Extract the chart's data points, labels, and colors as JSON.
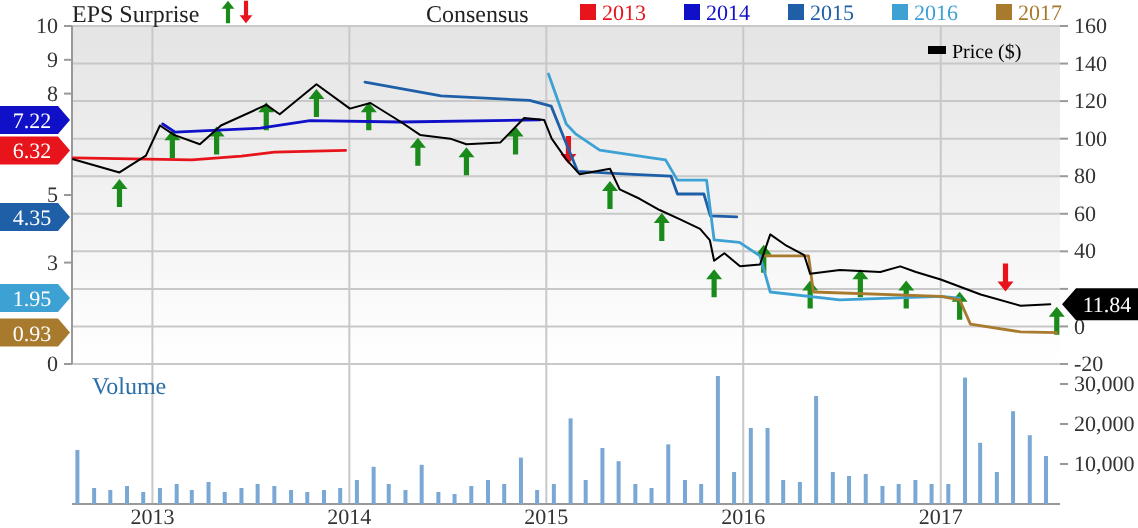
{
  "chart_data": {
    "type": "line",
    "annotations": [
      "EPS Surprise",
      "Consensus",
      "6.32",
      "7.22",
      "4.35",
      "1.95",
      "0.93",
      "11.84"
    ],
    "xlim": [
      "2012-08-05",
      "2017-08-10"
    ],
    "xticks": [
      {
        "value": "2013",
        "label": "2013"
      },
      {
        "value": "2014",
        "label": "2014"
      },
      {
        "value": "2015",
        "label": "2015"
      },
      {
        "value": "2016",
        "label": "2016"
      },
      {
        "value": "2017",
        "label": "2017"
      }
    ],
    "ylim": [
      0,
      10
    ],
    "yticks": [
      {
        "value": 10,
        "label": "10"
      },
      {
        "value": 9,
        "label": "9"
      },
      {
        "value": 8,
        "label": "8"
      },
      {
        "value": 5,
        "label": "5"
      },
      {
        "value": 3,
        "label": "3"
      },
      {
        "value": 0,
        "label": "0"
      }
    ],
    "y2lim": [
      -20,
      160
    ],
    "y2ticks": [
      {
        "value": 160,
        "label": "160"
      },
      {
        "value": 140,
        "label": "140"
      },
      {
        "value": 120,
        "label": "120"
      },
      {
        "value": 100,
        "label": "100"
      },
      {
        "value": 80,
        "label": "80"
      },
      {
        "value": 60,
        "label": "60"
      },
      {
        "value": 40,
        "label": "40"
      },
      {
        "value": 20,
        "label": null
      },
      {
        "value": 0,
        "label": "0"
      },
      {
        "value": -20,
        "label": "-20"
      }
    ],
    "y3lim": [
      0,
      35000
    ],
    "y3ticks": [
      {
        "value": 10000,
        "label": "10,000"
      },
      {
        "value": 20000,
        "label": "20,000"
      },
      {
        "value": 30000,
        "label": "30,000"
      }
    ],
    "y3label": "Volume",
    "grid": true,
    "legend": "top",
    "series": [
      {
        "name": "2013",
        "axis": "y",
        "color": "#e8141b",
        "x": [
          "2012-08-07",
          "2013-03-15",
          "2013-06-15",
          "2013-08-15",
          "2013-12-25"
        ],
        "values": [
          6.1,
          6.04,
          6.15,
          6.27,
          6.32
        ]
      },
      {
        "name": "2014",
        "axis": "y",
        "color": "#1010c8",
        "x": [
          "2013-01-20",
          "2013-02-12",
          "2013-07-20",
          "2013-10-20",
          "2014-04-06",
          "2014-12-20"
        ],
        "values": [
          7.1,
          6.86,
          6.98,
          7.2,
          7.16,
          7.22
        ]
      },
      {
        "name": "2015",
        "axis": "y",
        "color": "#1f5fa8",
        "x": [
          "2014-01-30",
          "2014-06-20",
          "2014-12-01",
          "2015-01-10",
          "2015-02-05",
          "2015-02-28",
          "2015-06-01",
          "2015-08-20",
          "2015-09-01",
          "2015-10-20",
          "2015-11-01",
          "2015-12-20"
        ],
        "values": [
          8.34,
          7.93,
          7.8,
          7.63,
          6.6,
          5.7,
          5.62,
          5.56,
          5.03,
          5.03,
          4.38,
          4.35
        ]
      },
      {
        "name": "2016",
        "axis": "y",
        "color": "#3da1d4",
        "x": [
          "2015-01-05",
          "2015-02-07",
          "2015-02-25",
          "2015-04-10",
          "2015-07-15",
          "2015-08-10",
          "2015-09-01",
          "2015-10-25",
          "2015-11-08",
          "2015-12-25",
          "2016-02-01",
          "2016-02-20",
          "2016-06-28",
          "2017-01-01",
          "2017-02-05"
        ],
        "values": [
          8.58,
          7.1,
          6.8,
          6.33,
          6.1,
          6.04,
          5.44,
          5.44,
          3.67,
          3.6,
          3.2,
          2.13,
          1.9,
          2.0,
          1.95
        ]
      },
      {
        "name": "2017",
        "axis": "y",
        "color": "#a87a2e",
        "x": [
          "2016-02-10",
          "2016-05-01",
          "2016-05-10",
          "2017-01-01",
          "2017-02-05",
          "2017-02-25",
          "2017-05-29",
          "2017-08-04"
        ],
        "values": [
          3.2,
          3.2,
          2.13,
          2.0,
          1.9,
          1.18,
          0.95,
          0.93
        ]
      },
      {
        "name": "Price ($)",
        "axis": "y2",
        "color": "#000000",
        "x": [
          "2012-08-07",
          "2012-11-01",
          "2012-12-20",
          "2013-01-15",
          "2013-02-10",
          "2013-03-30",
          "2013-05-08",
          "2013-07-31",
          "2013-08-25",
          "2013-11-01",
          "2014-01-02",
          "2014-02-09",
          "2014-04-06",
          "2014-05-12",
          "2014-07-07",
          "2014-08-06",
          "2014-10-08",
          "2014-11-21",
          "2014-12-28",
          "2015-01-11",
          "2015-02-07",
          "2015-03-04",
          "2015-04-29",
          "2015-05-17",
          "2015-06-23",
          "2015-07-30",
          "2015-09-06",
          "2015-10-13",
          "2015-10-31",
          "2015-11-08",
          "2015-11-27",
          "2015-12-26",
          "2016-02-01",
          "2016-02-20",
          "2016-03-21",
          "2016-04-23",
          "2016-05-04",
          "2016-06-28",
          "2016-09-11",
          "2016-10-18",
          "2016-11-16",
          "2017-01-01",
          "2017-03-16",
          "2017-05-29",
          "2017-07-23"
        ],
        "values": [
          89,
          82,
          91,
          107,
          102,
          97,
          107,
          118,
          113,
          129,
          116,
          119,
          109,
          102,
          100,
          97,
          98,
          111,
          110,
          100,
          89,
          81,
          84,
          73,
          68,
          62,
          57,
          52,
          46,
          35,
          39,
          32,
          33,
          49,
          43,
          38,
          28,
          30,
          29,
          32,
          29,
          25,
          17,
          11,
          11.84
        ]
      },
      {
        "type": "scatter",
        "axis": "y2",
        "color": "#1a8a1a",
        "x": [
          "2012-11-01",
          "2013-02-07",
          "2013-04-30",
          "2013-07-31",
          "2013-11-01",
          "2014-02-06",
          "2014-05-08",
          "2014-08-06",
          "2014-11-05",
          "2015-04-29",
          "2015-08-03",
          "2015-11-08",
          "2016-02-08",
          "2016-05-04",
          "2016-08-05",
          "2016-10-29",
          "2017-02-05",
          "2017-08-04"
        ],
        "values": [
          71,
          97,
          99,
          112,
          119,
          112,
          93,
          88,
          99,
          70,
          53,
          23,
          36,
          17,
          23,
          17,
          11,
          3
        ]
      },
      {
        "type": "scatter",
        "axis": "y2",
        "color": "#e8141b",
        "x": [
          "2015-02-11",
          "2017-05-01"
        ],
        "values": [
          94,
          26
        ]
      },
      {
        "type": "bar",
        "axis": "y3",
        "color": "#7aa8d4",
        "x": [
          "2012-08-15",
          "2012-09-15",
          "2012-10-15",
          "2012-11-15",
          "2012-12-15",
          "2013-01-15",
          "2013-02-15",
          "2013-03-15",
          "2013-04-15",
          "2013-05-15",
          "2013-06-15",
          "2013-07-15",
          "2013-08-15",
          "2013-09-15",
          "2013-10-15",
          "2013-11-15",
          "2013-12-15",
          "2014-01-15",
          "2014-02-15",
          "2014-03-15",
          "2014-04-15",
          "2014-05-15",
          "2014-06-15",
          "2014-07-15",
          "2014-08-15",
          "2014-09-15",
          "2014-10-15",
          "2014-11-15",
          "2014-12-15",
          "2015-01-15",
          "2015-02-15",
          "2015-03-15",
          "2015-04-15",
          "2015-05-15",
          "2015-06-15",
          "2015-07-15",
          "2015-08-15",
          "2015-09-15",
          "2015-10-15",
          "2015-11-15",
          "2015-12-15",
          "2016-01-15",
          "2016-02-15",
          "2016-03-15",
          "2016-04-15",
          "2016-05-15",
          "2016-06-15",
          "2016-07-15",
          "2016-08-15",
          "2016-09-15",
          "2016-10-15",
          "2016-11-15",
          "2016-12-15",
          "2017-01-15",
          "2017-02-15",
          "2017-03-15",
          "2017-04-15",
          "2017-05-15",
          "2017-06-15",
          "2017-07-15"
        ],
        "values": [
          13500,
          4000,
          3500,
          4500,
          3000,
          4000,
          5000,
          3500,
          5500,
          3000,
          4000,
          5000,
          4500,
          3500,
          3000,
          3500,
          4000,
          6000,
          9300,
          5000,
          3500,
          9800,
          3000,
          2500,
          4500,
          6000,
          5000,
          11600,
          3500,
          5000,
          21400,
          6000,
          14000,
          10700,
          5000,
          4000,
          14900,
          6000,
          5000,
          32000,
          8000,
          19000,
          19000,
          6000,
          5500,
          27000,
          8000,
          7000,
          7500,
          4500,
          5000,
          6000,
          5000,
          5000,
          31600,
          15300,
          8000,
          23200,
          17200,
          12000
        ]
      }
    ]
  }
}
